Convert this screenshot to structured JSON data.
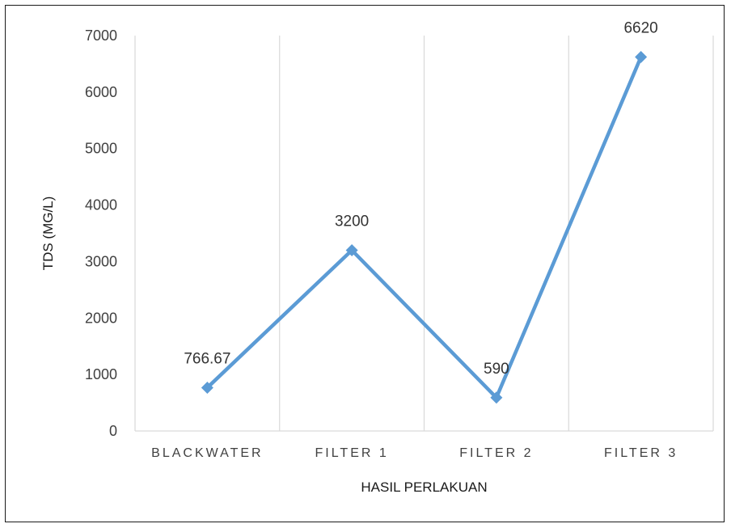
{
  "chart_data": {
    "type": "line",
    "title": "",
    "xlabel": "HASIL PERLAKUAN",
    "ylabel": "TDS (MG/L)",
    "categories": [
      "BLACKWATER",
      "FILTER 1",
      "FILTER 2",
      "FILTER 3"
    ],
    "series": [
      {
        "values": [
          766.67,
          3200,
          590,
          6620
        ],
        "data_labels": [
          "766.67",
          "3200",
          "590",
          "6620"
        ],
        "color": "#5B9BD5"
      }
    ],
    "ylim": [
      0,
      7000
    ],
    "yticks": [
      0,
      1000,
      2000,
      3000,
      4000,
      5000,
      6000,
      7000
    ],
    "ytick_labels": [
      "0",
      "1000",
      "2000",
      "3000",
      "4000",
      "5000",
      "6000",
      "7000"
    ],
    "grid": "vertical",
    "grid_color": "#D9D9D9",
    "legend": "none"
  }
}
